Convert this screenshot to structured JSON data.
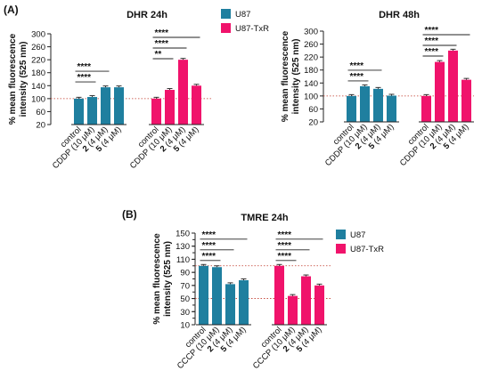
{
  "panel_labels": {
    "a": "(A)",
    "b": "(B)"
  },
  "legend": {
    "series": [
      "U87",
      "U87-TxR"
    ],
    "colors": [
      "#1f7f9f",
      "#f0136b"
    ]
  },
  "chart_data": [
    {
      "type": "bar",
      "title": "DHR 24h",
      "ylabel": "% mean fluorescence intensity (525 nm)",
      "ylim": [
        20,
        300
      ],
      "yticks": [
        20,
        60,
        100,
        140,
        180,
        220,
        260,
        300
      ],
      "reference_line": 100,
      "categories": [
        "control",
        "CDDP (10 μM)",
        "2 (4 μM)",
        "5 (4 μM)"
      ],
      "category_display": [
        [
          "",
          "control"
        ],
        [
          "",
          "CDDP (10 μM)"
        ],
        [
          "2",
          " (4 μM)"
        ],
        [
          "5",
          " (4 μM)"
        ]
      ],
      "series": [
        {
          "name": "U87",
          "values": [
            100,
            105,
            135,
            135
          ]
        },
        {
          "name": "U87-TxR",
          "values": [
            100,
            127,
            220,
            140
          ]
        }
      ],
      "significance": [
        {
          "series": 0,
          "from": 0,
          "to": 2,
          "label": "****"
        },
        {
          "series": 0,
          "from": 0,
          "to": 1,
          "label": "****"
        },
        {
          "series": 1,
          "from": 0,
          "to": 3,
          "label": "****"
        },
        {
          "series": 1,
          "from": 0,
          "to": 2,
          "label": "****"
        },
        {
          "series": 1,
          "from": 0,
          "to": 1,
          "label": "**"
        }
      ]
    },
    {
      "type": "bar",
      "title": "DHR 48h",
      "ylabel": "% mean fluorescence intensity (525 nm)",
      "ylim": [
        20,
        300
      ],
      "yticks": [
        20,
        60,
        100,
        140,
        180,
        220,
        260,
        300
      ],
      "reference_line": 100,
      "categories": [
        "control",
        "CDDP (10 μM)",
        "2 (4 μM)",
        "5 (4 μM)"
      ],
      "category_display": [
        [
          "",
          "control"
        ],
        [
          "",
          "CDDP (10 μM)"
        ],
        [
          "2",
          " (4 μM)"
        ],
        [
          "5",
          " (4 μM)"
        ]
      ],
      "series": [
        {
          "name": "U87",
          "values": [
            100,
            130,
            122,
            101
          ]
        },
        {
          "name": "U87-TxR",
          "values": [
            100,
            205,
            240,
            150
          ]
        }
      ],
      "significance": [
        {
          "series": 0,
          "from": 0,
          "to": 2,
          "label": "****"
        },
        {
          "series": 0,
          "from": 0,
          "to": 1,
          "label": "****"
        },
        {
          "series": 1,
          "from": 0,
          "to": 3,
          "label": "****"
        },
        {
          "series": 1,
          "from": 0,
          "to": 2,
          "label": "****"
        },
        {
          "series": 1,
          "from": 0,
          "to": 1,
          "label": "****"
        }
      ]
    },
    {
      "type": "bar",
      "title": "TMRE 24h",
      "ylabel": "% mean fluorescence intensity (525 nm)",
      "ylim": [
        10,
        150
      ],
      "yticks": [
        10,
        30,
        50,
        70,
        90,
        110,
        130,
        150
      ],
      "ytick_labels": [
        10,
        30,
        50,
        70,
        90,
        110,
        130,
        150
      ],
      "yticks_all": [
        10,
        20,
        30,
        40,
        50,
        60,
        70,
        80,
        90,
        100,
        110,
        120,
        130,
        140,
        150
      ],
      "reference_lines": [
        100,
        50
      ],
      "categories": [
        "control",
        "CCCP (10 μM)",
        "2 (4 μM)",
        "5 (4 μM)"
      ],
      "category_display": [
        [
          "",
          "control"
        ],
        [
          "",
          "CCCP (10 μM)"
        ],
        [
          "2",
          " (4 μM)"
        ],
        [
          "5",
          " (4 μM)"
        ]
      ],
      "series": [
        {
          "name": "U87",
          "values": [
            100,
            98,
            72,
            78
          ]
        },
        {
          "name": "U87-TxR",
          "values": [
            100,
            54,
            84,
            70
          ]
        }
      ],
      "significance": [
        {
          "series": 0,
          "from": 0,
          "to": 3,
          "label": "****"
        },
        {
          "series": 0,
          "from": 0,
          "to": 2,
          "label": "****"
        },
        {
          "series": 0,
          "from": 0,
          "to": 1,
          "label": "****"
        },
        {
          "series": 1,
          "from": 0,
          "to": 3,
          "label": "****"
        },
        {
          "series": 1,
          "from": 0,
          "to": 2,
          "label": "****"
        },
        {
          "series": 1,
          "from": 0,
          "to": 1,
          "label": "****"
        }
      ]
    }
  ]
}
